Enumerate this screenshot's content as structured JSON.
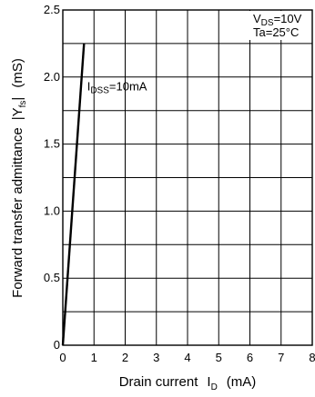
{
  "chart_data": {
    "type": "line",
    "x_axis": {
      "label": "Drain current",
      "symbol": "I",
      "symbol_sub": "D",
      "unit": "(mA)",
      "range": [
        0,
        8
      ],
      "ticks": [
        "0",
        "1",
        "2",
        "3",
        "4",
        "5",
        "6",
        "7",
        "8"
      ]
    },
    "y_axis": {
      "label": "Forward transfer admittance",
      "symbol_open": "|Y",
      "symbol_sub": "fs",
      "symbol_close": "|",
      "unit": "(mS)",
      "range": [
        0,
        2.5
      ],
      "ticks": [
        "0",
        "0.5",
        "1.0",
        "1.5",
        "2.0",
        "2.5"
      ]
    },
    "grid": {
      "x_step": 1,
      "y_step": 0.25,
      "visible": true
    },
    "series": [
      {
        "x": [
          0,
          0.68
        ],
        "y": [
          0,
          2.25
        ]
      }
    ],
    "annotation": {
      "prefix": "I",
      "sub": "DSS",
      "suffix": "=10mA",
      "x": 0.78,
      "y": 1.9
    },
    "conditions": {
      "line1_prefix": "V",
      "line1_sub": "DS",
      "line1_suffix": "=10V",
      "line2": "Ta=25°C",
      "placement": "top-right"
    }
  }
}
